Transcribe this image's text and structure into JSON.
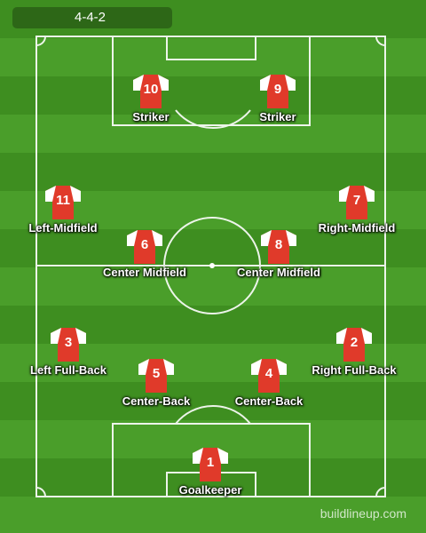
{
  "formation": "4-4-2",
  "watermark": "buildlineup.com",
  "colors": {
    "shirt_body": "#e03a2a",
    "shirt_sleeve": "#ffffff",
    "line": "#ffffff"
  },
  "players": [
    {
      "number": "10",
      "position": "Striker"
    },
    {
      "number": "9",
      "position": "Striker"
    },
    {
      "number": "11",
      "position": "Left-Midfield"
    },
    {
      "number": "7",
      "position": "Right-Midfield"
    },
    {
      "number": "6",
      "position": "Center Midfield"
    },
    {
      "number": "8",
      "position": "Center Midfield"
    },
    {
      "number": "3",
      "position": "Left Full-Back"
    },
    {
      "number": "2",
      "position": "Right Full-Back"
    },
    {
      "number": "5",
      "position": "Center-Back"
    },
    {
      "number": "4",
      "position": "Center-Back"
    },
    {
      "number": "1",
      "position": "Goalkeeper"
    }
  ]
}
